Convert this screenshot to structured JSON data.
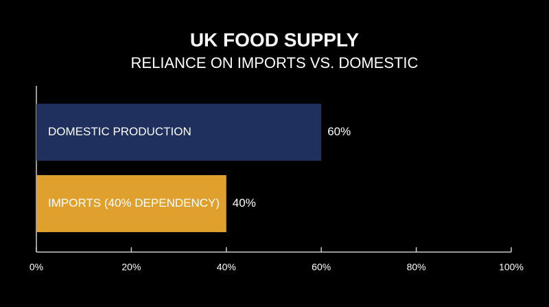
{
  "chart_data": {
    "type": "hbar",
    "title": "UK FOOD SUPPLY",
    "subtitle": "RELIANCE ON IMPORTS VS. DOMESTIC",
    "categories": [
      "DOMESTIC PRODUCTION",
      "IMPORTS (40% DEPENDENCY)"
    ],
    "values": [
      60,
      40
    ],
    "value_labels": [
      "60%",
      "40%"
    ],
    "colors": [
      "#1f2f5e",
      "#e0a02e"
    ],
    "xlim": [
      0,
      100
    ],
    "xticks": [
      {
        "value": 0,
        "label": "0%"
      },
      {
        "value": 20,
        "label": "20%"
      },
      {
        "value": 40,
        "label": "40%"
      },
      {
        "value": 60,
        "label": "60%"
      },
      {
        "value": 80,
        "label": "80%"
      },
      {
        "value": 100,
        "label": "100%"
      }
    ]
  }
}
